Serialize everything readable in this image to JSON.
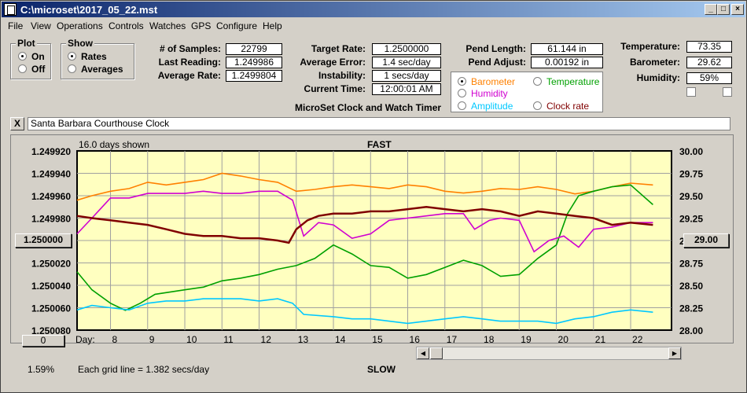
{
  "window": {
    "title": "C:\\microset\\2017_05_22.mst"
  },
  "menu": [
    "File",
    "View",
    "Operations",
    "Controls",
    "Watches",
    "GPS",
    "Configure",
    "Help"
  ],
  "plot_group": {
    "title": "Plot",
    "options": [
      {
        "label": "On",
        "selected": true
      },
      {
        "label": "Off",
        "selected": false
      }
    ]
  },
  "show_group": {
    "title": "Show",
    "options": [
      {
        "label": "Rates",
        "selected": true
      },
      {
        "label": "Averages",
        "selected": false
      }
    ]
  },
  "stats": {
    "samples_label": "# of Samples:",
    "samples": "22799",
    "last_label": "Last Reading:",
    "last": "1.249986",
    "avg_rate_label": "Average Rate:",
    "avg_rate": "1.2499804",
    "target_label": "Target Rate:",
    "target": "1.2500000",
    "avg_err_label": "Average Error:",
    "avg_err": "1.4 sec/day",
    "instab_label": "Instability:",
    "instab": "1 secs/day",
    "time_label": "Current Time:",
    "time": "12:00:01 AM",
    "pend_len_label": "Pend Length:",
    "pend_len": "61.144 in",
    "pend_adj_label": "Pend Adjust:",
    "pend_adj": "0.00192 in",
    "temp_label": "Temperature:",
    "temp": "73.35",
    "baro_label": "Barometer:",
    "baro": "29.62",
    "hum_label": "Humidity:",
    "hum": "59%"
  },
  "app_caption": "MicroSet Clock and Watch Timer",
  "overlay_options": [
    {
      "label": "Barometer",
      "color": "#ff8000",
      "selected": true
    },
    {
      "label": "Temperature",
      "color": "#00a000",
      "selected": false
    },
    {
      "label": "Humidity",
      "color": "#d000d0",
      "selected": false
    },
    {
      "label": "Amplitude",
      "color": "#00c8ff",
      "selected": false
    },
    {
      "label": "Clock rate",
      "color": "#800000",
      "selected": false
    }
  ],
  "clock_name": "Santa Barbara Courthouse Clock",
  "close_label": "X",
  "chart": {
    "days_shown": "16.0 days shown",
    "top_label": "FAST",
    "bottom_label": "SLOW",
    "grid_note": "Each grid line = 1.382 secs/day",
    "day_label": "Day:",
    "left_button": "1.250000",
    "right_button": "29.00",
    "zero_button": "0",
    "percent": "1.59%"
  },
  "chart_data": {
    "type": "line",
    "background": "#ffffc0",
    "left_axis": {
      "ticks": [
        "1.249920",
        "1.249940",
        "1.249960",
        "1.249980",
        "1.250000",
        "1.250020",
        "1.250040",
        "1.250060",
        "1.250080"
      ],
      "min": 1.24992,
      "max": 1.25008,
      "inverted": true
    },
    "right_axis": {
      "ticks": [
        "30.00",
        "29.75",
        "29.50",
        "29.25",
        "29.00",
        "28.75",
        "28.50",
        "28.25",
        "28.00"
      ],
      "min": 28.0,
      "max": 30.0
    },
    "x_axis": {
      "min": 7.1,
      "max": 23.1,
      "ticks": [
        8,
        9,
        10,
        11,
        12,
        13,
        14,
        15,
        16,
        17,
        18,
        19,
        20,
        21,
        22
      ]
    },
    "series": [
      {
        "color": "#ff8000",
        "axis": "right",
        "points": [
          [
            7.1,
            29.45
          ],
          [
            7.5,
            29.5
          ],
          [
            8.0,
            29.55
          ],
          [
            8.5,
            29.58
          ],
          [
            9.0,
            29.65
          ],
          [
            9.5,
            29.62
          ],
          [
            10.0,
            29.65
          ],
          [
            10.5,
            29.68
          ],
          [
            11.0,
            29.75
          ],
          [
            11.5,
            29.72
          ],
          [
            12.0,
            29.68
          ],
          [
            12.5,
            29.65
          ],
          [
            13.0,
            29.55
          ],
          [
            13.5,
            29.57
          ],
          [
            14.0,
            29.6
          ],
          [
            14.5,
            29.62
          ],
          [
            15.0,
            29.6
          ],
          [
            15.5,
            29.58
          ],
          [
            16.0,
            29.62
          ],
          [
            16.5,
            29.6
          ],
          [
            17.0,
            29.55
          ],
          [
            17.5,
            29.53
          ],
          [
            18.0,
            29.55
          ],
          [
            18.5,
            29.58
          ],
          [
            19.0,
            29.57
          ],
          [
            19.5,
            29.6
          ],
          [
            20.0,
            29.57
          ],
          [
            20.5,
            29.52
          ],
          [
            21.0,
            29.55
          ],
          [
            21.5,
            29.6
          ],
          [
            22.0,
            29.64
          ],
          [
            22.6,
            29.62
          ]
        ]
      },
      {
        "color": "#00a000",
        "axis": "right",
        "points": [
          [
            7.1,
            28.65
          ],
          [
            7.5,
            28.45
          ],
          [
            8.0,
            28.3
          ],
          [
            8.4,
            28.22
          ],
          [
            8.8,
            28.3
          ],
          [
            9.2,
            28.4
          ],
          [
            10.0,
            28.45
          ],
          [
            10.5,
            28.48
          ],
          [
            11.0,
            28.55
          ],
          [
            11.5,
            28.58
          ],
          [
            12.0,
            28.62
          ],
          [
            12.5,
            28.68
          ],
          [
            13.0,
            28.72
          ],
          [
            13.5,
            28.8
          ],
          [
            14.0,
            28.95
          ],
          [
            14.5,
            28.85
          ],
          [
            15.0,
            28.72
          ],
          [
            15.5,
            28.7
          ],
          [
            16.0,
            28.58
          ],
          [
            16.5,
            28.62
          ],
          [
            17.0,
            28.7
          ],
          [
            17.5,
            28.78
          ],
          [
            18.0,
            28.72
          ],
          [
            18.5,
            28.6
          ],
          [
            19.0,
            28.62
          ],
          [
            19.5,
            28.8
          ],
          [
            20.0,
            28.95
          ],
          [
            20.3,
            29.3
          ],
          [
            20.6,
            29.5
          ],
          [
            21.0,
            29.55
          ],
          [
            21.5,
            29.6
          ],
          [
            22.0,
            29.62
          ],
          [
            22.6,
            29.4
          ]
        ]
      },
      {
        "color": "#d000d0",
        "axis": "left",
        "points": [
          [
            7.1,
            1.249994
          ],
          [
            7.5,
            1.24998
          ],
          [
            8.0,
            1.249962
          ],
          [
            8.5,
            1.249962
          ],
          [
            9.0,
            1.249958
          ],
          [
            9.5,
            1.249958
          ],
          [
            10.0,
            1.249958
          ],
          [
            10.5,
            1.249956
          ],
          [
            11.0,
            1.249958
          ],
          [
            11.5,
            1.249958
          ],
          [
            12.0,
            1.249956
          ],
          [
            12.5,
            1.249956
          ],
          [
            12.9,
            1.249964
          ],
          [
            13.2,
            1.249996
          ],
          [
            13.6,
            1.249984
          ],
          [
            14.0,
            1.249986
          ],
          [
            14.5,
            1.249998
          ],
          [
            15.0,
            1.249994
          ],
          [
            15.5,
            1.249982
          ],
          [
            16.0,
            1.24998
          ],
          [
            16.5,
            1.249978
          ],
          [
            17.0,
            1.249976
          ],
          [
            17.5,
            1.249976
          ],
          [
            17.8,
            1.24999
          ],
          [
            18.2,
            1.249982
          ],
          [
            18.5,
            1.24998
          ],
          [
            19.0,
            1.249982
          ],
          [
            19.4,
            1.25001
          ],
          [
            19.8,
            1.25
          ],
          [
            20.2,
            1.249996
          ],
          [
            20.6,
            1.250006
          ],
          [
            21.0,
            1.24999
          ],
          [
            21.5,
            1.249988
          ],
          [
            22.0,
            1.249984
          ],
          [
            22.6,
            1.249984
          ]
        ]
      },
      {
        "color": "#00c8ff",
        "axis": "left",
        "points": [
          [
            7.1,
            1.250062
          ],
          [
            7.5,
            1.250058
          ],
          [
            8.0,
            1.25006
          ],
          [
            8.5,
            1.250062
          ],
          [
            9.0,
            1.250056
          ],
          [
            9.5,
            1.250054
          ],
          [
            10.0,
            1.250054
          ],
          [
            10.5,
            1.250052
          ],
          [
            11.0,
            1.250052
          ],
          [
            11.5,
            1.250052
          ],
          [
            12.0,
            1.250054
          ],
          [
            12.5,
            1.250052
          ],
          [
            12.9,
            1.250056
          ],
          [
            13.2,
            1.250066
          ],
          [
            14.0,
            1.250068
          ],
          [
            14.5,
            1.25007
          ],
          [
            15.0,
            1.25007
          ],
          [
            15.5,
            1.250072
          ],
          [
            16.0,
            1.250074
          ],
          [
            16.5,
            1.250072
          ],
          [
            17.0,
            1.25007
          ],
          [
            17.5,
            1.250068
          ],
          [
            18.0,
            1.25007
          ],
          [
            18.5,
            1.250072
          ],
          [
            19.0,
            1.250072
          ],
          [
            19.5,
            1.250072
          ],
          [
            20.0,
            1.250074
          ],
          [
            20.5,
            1.25007
          ],
          [
            21.0,
            1.250068
          ],
          [
            21.5,
            1.250064
          ],
          [
            22.0,
            1.250062
          ],
          [
            22.6,
            1.250064
          ]
        ]
      },
      {
        "color": "#800000",
        "axis": "left",
        "points": [
          [
            7.1,
            1.249978
          ],
          [
            7.5,
            1.24998
          ],
          [
            8.0,
            1.249982
          ],
          [
            8.5,
            1.249984
          ],
          [
            9.0,
            1.249986
          ],
          [
            9.5,
            1.24999
          ],
          [
            10.0,
            1.249994
          ],
          [
            10.5,
            1.249996
          ],
          [
            11.0,
            1.249996
          ],
          [
            11.5,
            1.249998
          ],
          [
            12.0,
            1.249998
          ],
          [
            12.5,
            1.25
          ],
          [
            12.8,
            1.250002
          ],
          [
            13.0,
            1.24999
          ],
          [
            13.3,
            1.249982
          ],
          [
            13.6,
            1.249978
          ],
          [
            14.0,
            1.249976
          ],
          [
            14.5,
            1.249976
          ],
          [
            15.0,
            1.249974
          ],
          [
            15.5,
            1.249974
          ],
          [
            16.0,
            1.249972
          ],
          [
            16.5,
            1.24997
          ],
          [
            17.0,
            1.249972
          ],
          [
            17.5,
            1.249974
          ],
          [
            18.0,
            1.249972
          ],
          [
            18.5,
            1.249974
          ],
          [
            19.0,
            1.249978
          ],
          [
            19.5,
            1.249974
          ],
          [
            20.0,
            1.249976
          ],
          [
            20.5,
            1.249978
          ],
          [
            21.0,
            1.24998
          ],
          [
            21.5,
            1.249986
          ],
          [
            22.0,
            1.249984
          ],
          [
            22.6,
            1.249986
          ]
        ]
      }
    ]
  }
}
